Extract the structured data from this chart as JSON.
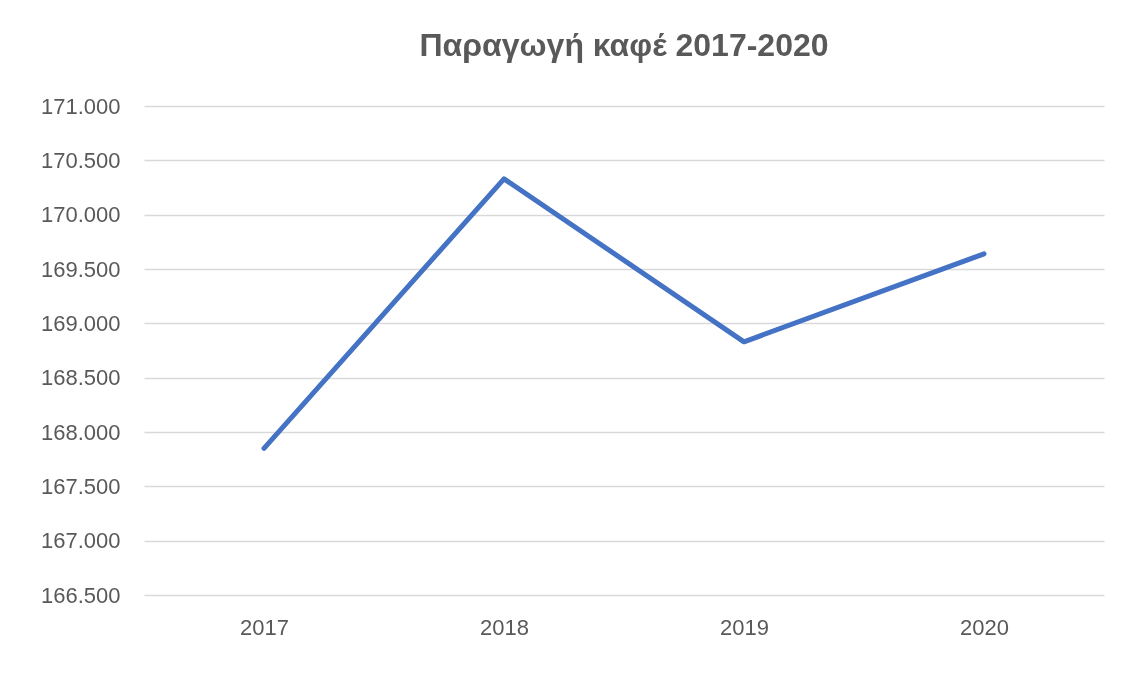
{
  "chart_data": {
    "type": "line",
    "title": "Παραγωγή καφέ 2017-2020",
    "categories": [
      "2017",
      "2018",
      "2019",
      "2020"
    ],
    "series": [
      {
        "color": "#4472c4",
        "values": [
          167850,
          170330,
          168830,
          169640
        ]
      }
    ],
    "ylim": [
      166500,
      171000
    ],
    "yticks": [
      {
        "value": 166500,
        "label": "166.500"
      },
      {
        "value": 167000,
        "label": "167.000"
      },
      {
        "value": 167500,
        "label": "167.500"
      },
      {
        "value": 168000,
        "label": "168.000"
      },
      {
        "value": 168500,
        "label": "168.500"
      },
      {
        "value": 169000,
        "label": "169.000"
      },
      {
        "value": 169500,
        "label": "169.500"
      },
      {
        "value": 170000,
        "label": "170.000"
      },
      {
        "value": 170500,
        "label": "170.500"
      },
      {
        "value": 171000,
        "label": "171.000"
      }
    ],
    "grid": "y",
    "marker": "none",
    "line_style": "solid"
  }
}
